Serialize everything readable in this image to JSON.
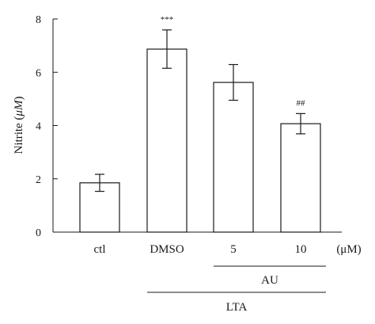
{
  "chart_data": {
    "type": "bar",
    "categories": [
      "ctl",
      "DMSO",
      "5",
      "10"
    ],
    "values": [
      1.85,
      6.87,
      5.62,
      4.07
    ],
    "errors": [
      0.32,
      0.72,
      0.67,
      0.38
    ],
    "annotations": [
      "",
      "***",
      "",
      "##"
    ],
    "ylabel_prefix": "Nitrite (",
    "ylabel_unit": "μM",
    "ylabel_suffix": ")",
    "xunit": "(μM)",
    "ylim": [
      0,
      8
    ],
    "yticks": [
      "0",
      "2",
      "4",
      "6",
      "8"
    ],
    "groups": [
      {
        "label": "AU"
      },
      {
        "label": "LTA"
      }
    ],
    "colors": {
      "bar_fill": "#ffffff",
      "bar_stroke": "#1a1a1a",
      "axis": "#1a1a1a"
    },
    "grid": false
  }
}
